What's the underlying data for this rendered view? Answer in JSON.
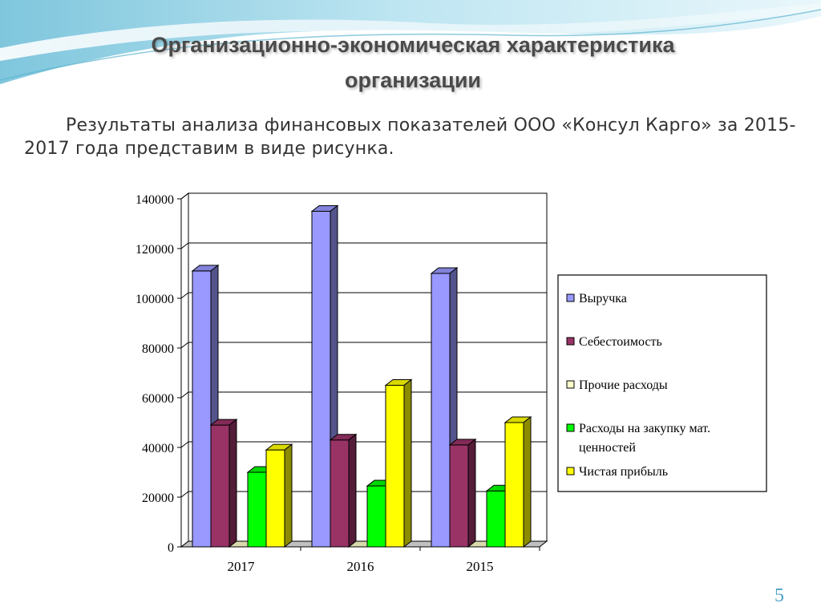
{
  "slide": {
    "title_line1": "Организационно-экономическая характеристика",
    "title_line2": "организации",
    "intro": "Результаты анализа финансовых показателей ООО «Консул Карго» за 2015-2017 года представим в виде рисунка.",
    "page_number": "5"
  },
  "colors": {
    "accent": "#4da3c9",
    "series": [
      "#9999ff",
      "#993366",
      "#ffffcc",
      "#00ff00",
      "#ffff00"
    ]
  },
  "chart_data": {
    "type": "bar",
    "categories": [
      "2017",
      "2016",
      "2015"
    ],
    "series": [
      {
        "name": "Выручка",
        "values": [
          111000,
          135000,
          110000
        ]
      },
      {
        "name": "Себестоимость",
        "values": [
          49000,
          43000,
          41000
        ]
      },
      {
        "name": "Прочие расходы",
        "values": [
          0,
          0,
          0
        ]
      },
      {
        "name": "Расходы на закупку мат. ценностей",
        "values": [
          30000,
          24500,
          22500
        ]
      },
      {
        "name": "Чистая прибыль",
        "values": [
          39000,
          65000,
          50000
        ]
      }
    ],
    "yticks": [
      "0",
      "20000",
      "40000",
      "60000",
      "80000",
      "100000",
      "120000",
      "140000"
    ],
    "ylim": [
      0,
      140000
    ],
    "grid": true,
    "legend_position": "right",
    "style": "3d-clustered-bar"
  }
}
